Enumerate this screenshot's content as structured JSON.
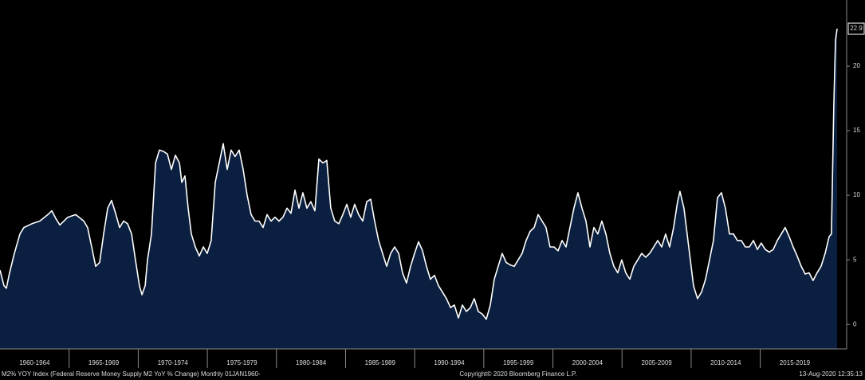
{
  "chart_data": {
    "type": "area",
    "x": [
      1960.0,
      1960.29,
      1960.46,
      1960.69,
      1961.04,
      1961.44,
      1961.73,
      1962.31,
      1962.88,
      1963.46,
      1963.75,
      1964.04,
      1964.33,
      1964.9,
      1965.48,
      1966.06,
      1966.34,
      1966.63,
      1966.92,
      1967.21,
      1967.5,
      1967.79,
      1968.07,
      1968.36,
      1968.65,
      1968.94,
      1969.23,
      1969.52,
      1969.8,
      1970.09,
      1970.27,
      1970.5,
      1970.67,
      1970.96,
      1971.25,
      1971.53,
      1971.82,
      1972.11,
      1972.4,
      1972.69,
      1972.98,
      1973.15,
      1973.38,
      1973.61,
      1973.84,
      1974.13,
      1974.42,
      1974.71,
      1974.99,
      1975.28,
      1975.57,
      1975.86,
      1976.15,
      1976.44,
      1976.72,
      1977.01,
      1977.3,
      1977.59,
      1977.88,
      1978.17,
      1978.45,
      1978.74,
      1979.03,
      1979.32,
      1979.61,
      1979.9,
      1980.18,
      1980.47,
      1980.76,
      1981.05,
      1981.34,
      1981.63,
      1981.91,
      1982.2,
      1982.49,
      1982.78,
      1983.07,
      1983.36,
      1983.64,
      1983.93,
      1984.22,
      1984.51,
      1984.8,
      1985.09,
      1985.37,
      1985.66,
      1985.95,
      1986.24,
      1986.53,
      1986.82,
      1987.1,
      1987.39,
      1987.68,
      1987.97,
      1988.26,
      1988.55,
      1988.84,
      1989.12,
      1989.41,
      1989.7,
      1989.99,
      1990.28,
      1990.57,
      1990.85,
      1991.14,
      1991.43,
      1991.72,
      1992.01,
      1992.3,
      1992.59,
      1992.87,
      1993.16,
      1993.45,
      1993.74,
      1994.03,
      1994.31,
      1994.6,
      1994.89,
      1995.18,
      1995.47,
      1995.76,
      1996.04,
      1996.33,
      1996.62,
      1996.91,
      1997.2,
      1997.49,
      1997.77,
      1998.06,
      1998.35,
      1998.64,
      1998.93,
      1999.22,
      1999.5,
      1999.79,
      2000.08,
      2000.37,
      2000.66,
      2000.95,
      2001.23,
      2001.52,
      2001.81,
      2002.1,
      2002.39,
      2002.68,
      2002.96,
      2003.25,
      2003.54,
      2003.83,
      2004.12,
      2004.41,
      2004.69,
      2004.98,
      2005.27,
      2005.56,
      2005.85,
      2006.14,
      2006.42,
      2006.71,
      2007.0,
      2007.29,
      2007.58,
      2007.87,
      2008.15,
      2008.44,
      2008.73,
      2009.02,
      2009.19,
      2009.48,
      2009.71,
      2009.88,
      2010.17,
      2010.46,
      2010.75,
      2011.04,
      2011.33,
      2011.61,
      2011.9,
      2012.19,
      2012.48,
      2012.77,
      2013.06,
      2013.34,
      2013.63,
      2013.92,
      2014.21,
      2014.5,
      2014.79,
      2015.07,
      2015.36,
      2015.65,
      2015.94,
      2016.23,
      2016.52,
      2016.8,
      2017.09,
      2017.38,
      2017.67,
      2017.96,
      2018.25,
      2018.53,
      2018.82,
      2019.11,
      2019.4,
      2019.69,
      2019.98,
      2020.15,
      2020.32,
      2020.44,
      2020.56
    ],
    "values": [
      4.2,
      3,
      2.8,
      4,
      5.5,
      7,
      7.5,
      7.8,
      8,
      8.5,
      8.8,
      8.2,
      7.7,
      8.3,
      8.5,
      8,
      7.5,
      6,
      4.5,
      4.8,
      7,
      9,
      9.6,
      8.6,
      7.5,
      8,
      7.8,
      7,
      5,
      3,
      2.3,
      3,
      5,
      7,
      12.5,
      13.5,
      13.4,
      13.2,
      12,
      13.1,
      12.5,
      11,
      11.5,
      9,
      7,
      6,
      5.3,
      6,
      5.5,
      6.5,
      11,
      12.5,
      14,
      12,
      13.5,
      13,
      13.5,
      12,
      10,
      8.5,
      8,
      8,
      7.5,
      8.5,
      8,
      8.3,
      8,
      8.3,
      9,
      8.6,
      10.4,
      9,
      10.2,
      9,
      9.5,
      8.8,
      12.8,
      12.5,
      12.7,
      9,
      8,
      7.8,
      8.5,
      9.3,
      8.3,
      9.3,
      8.5,
      8,
      9.5,
      9.7,
      8,
      6.5,
      5.5,
      4.5,
      5.5,
      6,
      5.5,
      4,
      3.2,
      4.5,
      5.5,
      6.4,
      5.7,
      4.5,
      3.5,
      3.8,
      3,
      2.5,
      2,
      1.3,
      1.5,
      0.5,
      1.5,
      1,
      1.3,
      2,
      1,
      0.8,
      0.4,
      1.5,
      3.5,
      4.5,
      5.5,
      4.8,
      4.6,
      4.5,
      5,
      5.5,
      6.5,
      7.2,
      7.5,
      8.5,
      8,
      7.5,
      6,
      6,
      5.7,
      6.5,
      6,
      7.5,
      9,
      10.2,
      9,
      8,
      6,
      7.5,
      7,
      8,
      7,
      5.5,
      4.5,
      4,
      5,
      4,
      3.5,
      4.5,
      5,
      5.5,
      5.2,
      5.5,
      6,
      6.5,
      6,
      7,
      6,
      7.5,
      9.5,
      10.3,
      9,
      7,
      5.5,
      3,
      2,
      2.5,
      3.5,
      5,
      6.5,
      9.8,
      10.2,
      9,
      7,
      7,
      6.5,
      6.5,
      6,
      6,
      6.5,
      5.8,
      6.3,
      5.8,
      5.6,
      5.8,
      6.5,
      7,
      7.5,
      6.8,
      6,
      5.3,
      4.5,
      3.9,
      4,
      3.4,
      4,
      4.5,
      5.5,
      6.8,
      7,
      17,
      22,
      22.9
    ],
    "color": "#0b2040",
    "line_color": "#ffffff",
    "xlim": [
      1960,
      2021.25
    ],
    "xticks": [
      {
        "value": 1960,
        "label": "1960-1964"
      },
      {
        "value": 1965,
        "label": "1965-1969"
      },
      {
        "value": 1970,
        "label": "1970-1974"
      },
      {
        "value": 1975,
        "label": "1975-1979"
      },
      {
        "value": 1980,
        "label": "1980-1984"
      },
      {
        "value": 1985,
        "label": "1985-1989"
      },
      {
        "value": 1990,
        "label": "1990-1994"
      },
      {
        "value": 1995,
        "label": "1995-1999"
      },
      {
        "value": 2000,
        "label": "2000-2004"
      },
      {
        "value": 2005,
        "label": "2005-2009"
      },
      {
        "value": 2010,
        "label": "2010-2014"
      },
      {
        "value": 2015,
        "label": "2015-2019"
      }
    ],
    "ylim": [
      -1.9,
      25
    ],
    "yticks": [
      0,
      5,
      10,
      15,
      20
    ],
    "footer_left": "M2% YOY Index (Federal Reserve Money Supply M2 YoY % Change)  Monthly 01JAN1960-",
    "footer_center": "Copyright© 2020 Bloomberg Finance L.P.",
    "footer_right": "13-Aug-2020 12:35:13"
  }
}
